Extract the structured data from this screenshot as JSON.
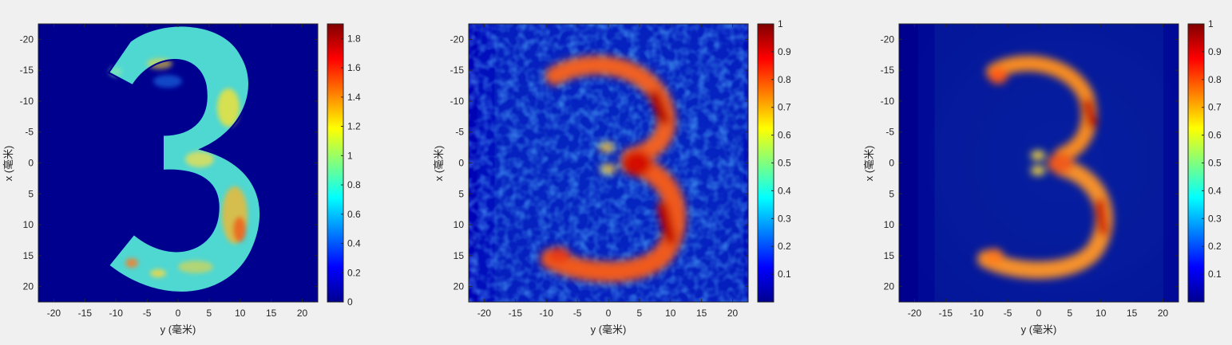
{
  "chart_data": [
    {
      "type": "heatmap",
      "xlabel": "y (毫米)",
      "ylabel": "x (毫米)",
      "xlim": [
        -22.5,
        22.5
      ],
      "ylim": [
        -22.5,
        22.5
      ],
      "y_reversed": true,
      "xticks": [
        "-20",
        "-15",
        "-10",
        "-5",
        "0",
        "5",
        "10",
        "15",
        "20"
      ],
      "yticks": [
        "-20",
        "-15",
        "-10",
        "-5",
        "0",
        "5",
        "10",
        "15",
        "20"
      ],
      "colormap": "jet",
      "clim": [
        0,
        1.9
      ],
      "colorbar_ticks": [
        "0",
        "0.2",
        "0.4",
        "0.6",
        "0.8",
        "1",
        "1.2",
        "1.4",
        "1.6",
        "1.8"
      ],
      "content": "digit 3",
      "style": "sharp"
    },
    {
      "type": "heatmap",
      "xlabel": "y (毫米)",
      "ylabel": "x (毫米)",
      "xlim": [
        -22.5,
        22.5
      ],
      "ylim": [
        -22.5,
        22.5
      ],
      "y_reversed": true,
      "xticks": [
        "-20",
        "-15",
        "-10",
        "-5",
        "0",
        "5",
        "10",
        "15",
        "20"
      ],
      "yticks": [
        "-20",
        "-15",
        "-10",
        "-5",
        "0",
        "5",
        "10",
        "15",
        "20"
      ],
      "colormap": "jet",
      "clim": [
        0,
        1
      ],
      "colorbar_ticks": [
        "0.1",
        "0.2",
        "0.3",
        "0.4",
        "0.5",
        "0.6",
        "0.7",
        "0.8",
        "0.9",
        "1"
      ],
      "content": "digit 3",
      "style": "blurred-noisy"
    },
    {
      "type": "heatmap",
      "xlabel": "y (毫米)",
      "ylabel": "x (毫米)",
      "xlim": [
        -22.5,
        22.5
      ],
      "ylim": [
        -22.5,
        22.5
      ],
      "y_reversed": true,
      "xticks": [
        "-20",
        "-15",
        "-10",
        "-5",
        "0",
        "5",
        "10",
        "15",
        "20"
      ],
      "yticks": [
        "-20",
        "-15",
        "-10",
        "-5",
        "0",
        "5",
        "10",
        "15",
        "20"
      ],
      "colormap": "jet",
      "clim": [
        0,
        1
      ],
      "colorbar_ticks": [
        "0.1",
        "0.2",
        "0.3",
        "0.4",
        "0.5",
        "0.6",
        "0.7",
        "0.8",
        "0.9",
        "1"
      ],
      "content": "digit 3",
      "style": "blurred-smooth"
    }
  ]
}
